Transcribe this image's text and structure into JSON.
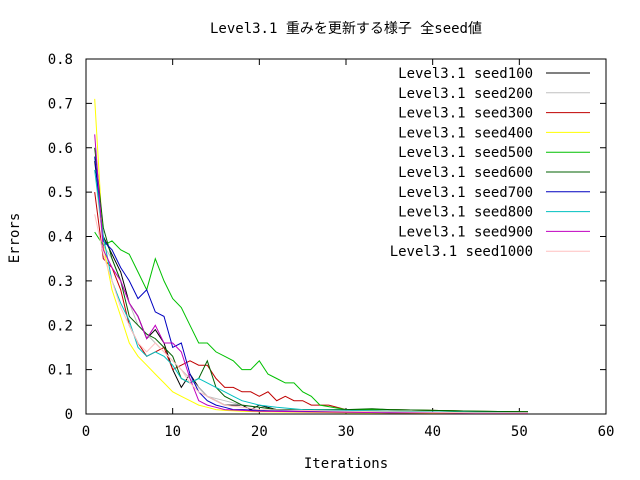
{
  "chart_data": {
    "type": "line",
    "title": "Level3.1 重みを更新する様子 全seed値",
    "xlabel": "Iterations",
    "ylabel": "Errors",
    "xlim": [
      0,
      60
    ],
    "ylim": [
      0,
      0.8
    ],
    "xticks": [
      "0",
      "10",
      "20",
      "30",
      "40",
      "50",
      "60"
    ],
    "yticks": [
      "0",
      "0.1",
      "0.2",
      "0.3",
      "0.4",
      "0.5",
      "0.6",
      "0.7",
      "0.8"
    ],
    "legend_position": "top-right",
    "grid": false,
    "series": [
      {
        "name": "Level3.1 seed100",
        "color": "#000000",
        "x": [
          1,
          2,
          3,
          4,
          5,
          6,
          7,
          8,
          9,
          10,
          11,
          12,
          13,
          14,
          15,
          16,
          17,
          18,
          19,
          20,
          22,
          24,
          26,
          28,
          30,
          35,
          40,
          45,
          51
        ],
        "y": [
          0.57,
          0.4,
          0.36,
          0.32,
          0.25,
          0.22,
          0.17,
          0.19,
          0.16,
          0.1,
          0.06,
          0.09,
          0.06,
          0.04,
          0.03,
          0.02,
          0.02,
          0.02,
          0.01,
          0.02,
          0.01,
          0.01,
          0.01,
          0.005,
          0.005,
          0.004,
          0.003,
          0.003,
          0.002
        ]
      },
      {
        "name": "Level3.1 seed200",
        "color": "#c0c0c0",
        "x": [
          1,
          2,
          3,
          4,
          5,
          6,
          7,
          8,
          9,
          10,
          11,
          12,
          13,
          14,
          16,
          18,
          20,
          22,
          25,
          30,
          35,
          40,
          45,
          51
        ],
        "y": [
          0.55,
          0.38,
          0.35,
          0.3,
          0.25,
          0.2,
          0.18,
          0.16,
          0.14,
          0.12,
          0.1,
          0.08,
          0.06,
          0.04,
          0.03,
          0.02,
          0.015,
          0.01,
          0.008,
          0.006,
          0.005,
          0.004,
          0.003,
          0.003
        ]
      },
      {
        "name": "Level3.1 seed300",
        "color": "#c00000",
        "x": [
          1,
          2,
          3,
          4,
          5,
          6,
          7,
          8,
          9,
          10,
          11,
          12,
          13,
          14,
          15,
          16,
          17,
          18,
          19,
          20,
          21,
          22,
          23,
          24,
          25,
          26,
          28,
          30,
          35,
          40,
          45,
          51
        ],
        "y": [
          0.5,
          0.35,
          0.33,
          0.28,
          0.2,
          0.16,
          0.13,
          0.14,
          0.15,
          0.1,
          0.11,
          0.12,
          0.11,
          0.11,
          0.08,
          0.06,
          0.06,
          0.05,
          0.05,
          0.04,
          0.05,
          0.03,
          0.04,
          0.03,
          0.03,
          0.02,
          0.02,
          0.01,
          0.01,
          0.008,
          0.006,
          0.005
        ]
      },
      {
        "name": "Level3.1 seed400",
        "color": "#ffff00",
        "x": [
          1,
          2,
          3,
          4,
          5,
          6,
          7,
          8,
          9,
          10,
          11,
          12,
          13,
          14,
          15,
          16,
          18,
          20,
          25,
          30,
          40,
          51
        ],
        "y": [
          0.71,
          0.38,
          0.28,
          0.22,
          0.16,
          0.13,
          0.11,
          0.09,
          0.07,
          0.05,
          0.04,
          0.03,
          0.02,
          0.015,
          0.01,
          0.008,
          0.006,
          0.005,
          0.004,
          0.003,
          0.002,
          0.002
        ]
      },
      {
        "name": "Level3.1 seed500",
        "color": "#00c000",
        "x": [
          1,
          2,
          3,
          4,
          5,
          6,
          7,
          8,
          9,
          10,
          11,
          12,
          13,
          14,
          15,
          16,
          17,
          18,
          19,
          20,
          21,
          22,
          23,
          24,
          25,
          26,
          27,
          30,
          35,
          40,
          45,
          51
        ],
        "y": [
          0.41,
          0.38,
          0.39,
          0.37,
          0.36,
          0.32,
          0.28,
          0.35,
          0.3,
          0.26,
          0.24,
          0.2,
          0.16,
          0.16,
          0.14,
          0.13,
          0.12,
          0.1,
          0.1,
          0.12,
          0.09,
          0.08,
          0.07,
          0.07,
          0.05,
          0.04,
          0.02,
          0.01,
          0.01,
          0.008,
          0.006,
          0.005
        ]
      },
      {
        "name": "Level3.1 seed600",
        "color": "#006000",
        "x": [
          1,
          2,
          3,
          4,
          5,
          6,
          7,
          8,
          9,
          10,
          11,
          12,
          13,
          14,
          15,
          16,
          17,
          18,
          20,
          22,
          25,
          30,
          33,
          35,
          40,
          45,
          51
        ],
        "y": [
          0.6,
          0.42,
          0.35,
          0.3,
          0.22,
          0.2,
          0.18,
          0.17,
          0.15,
          0.13,
          0.08,
          0.07,
          0.08,
          0.12,
          0.06,
          0.04,
          0.03,
          0.02,
          0.015,
          0.01,
          0.01,
          0.01,
          0.012,
          0.01,
          0.008,
          0.006,
          0.005
        ]
      },
      {
        "name": "Level3.1 seed700",
        "color": "#0000c0",
        "x": [
          1,
          2,
          3,
          4,
          5,
          6,
          7,
          8,
          9,
          10,
          11,
          12,
          13,
          14,
          15,
          16,
          17,
          18,
          20,
          22,
          25,
          30,
          35,
          40,
          45,
          51
        ],
        "y": [
          0.58,
          0.39,
          0.37,
          0.33,
          0.3,
          0.26,
          0.28,
          0.23,
          0.22,
          0.15,
          0.16,
          0.09,
          0.05,
          0.03,
          0.02,
          0.015,
          0.01,
          0.01,
          0.008,
          0.007,
          0.006,
          0.005,
          0.004,
          0.004,
          0.003,
          0.003
        ]
      },
      {
        "name": "Level3.1 seed800",
        "color": "#00c0c0",
        "x": [
          1,
          2,
          3,
          4,
          5,
          6,
          7,
          8,
          9,
          10,
          11,
          12,
          13,
          14,
          15,
          16,
          17,
          18,
          20,
          22,
          25,
          30,
          35,
          40,
          45,
          51
        ],
        "y": [
          0.55,
          0.4,
          0.3,
          0.25,
          0.21,
          0.15,
          0.13,
          0.14,
          0.13,
          0.11,
          0.08,
          0.07,
          0.08,
          0.07,
          0.06,
          0.05,
          0.04,
          0.03,
          0.02,
          0.015,
          0.01,
          0.008,
          0.006,
          0.005,
          0.004,
          0.003
        ]
      },
      {
        "name": "Level3.1 seed900",
        "color": "#c000c0",
        "x": [
          1,
          2,
          3,
          4,
          5,
          6,
          7,
          8,
          9,
          10,
          11,
          12,
          13,
          14,
          15,
          16,
          18,
          20,
          25,
          30,
          35,
          40,
          45,
          51
        ],
        "y": [
          0.63,
          0.37,
          0.33,
          0.3,
          0.25,
          0.22,
          0.17,
          0.2,
          0.16,
          0.16,
          0.14,
          0.08,
          0.03,
          0.02,
          0.015,
          0.01,
          0.008,
          0.006,
          0.005,
          0.004,
          0.003,
          0.003,
          0.002,
          0.002
        ]
      },
      {
        "name": "Level3.1 seed1000",
        "color": "#ffc0c0",
        "x": [
          1,
          2,
          3,
          4,
          5,
          6,
          7,
          8,
          9,
          10,
          11,
          12,
          13,
          14,
          15,
          16,
          18,
          20,
          25,
          30,
          35,
          40,
          45,
          51
        ],
        "y": [
          0.45,
          0.36,
          0.3,
          0.24,
          0.2,
          0.16,
          0.14,
          0.16,
          0.14,
          0.12,
          0.1,
          0.07,
          0.05,
          0.04,
          0.03,
          0.02,
          0.015,
          0.01,
          0.008,
          0.006,
          0.005,
          0.004,
          0.003,
          0.003
        ]
      }
    ]
  }
}
